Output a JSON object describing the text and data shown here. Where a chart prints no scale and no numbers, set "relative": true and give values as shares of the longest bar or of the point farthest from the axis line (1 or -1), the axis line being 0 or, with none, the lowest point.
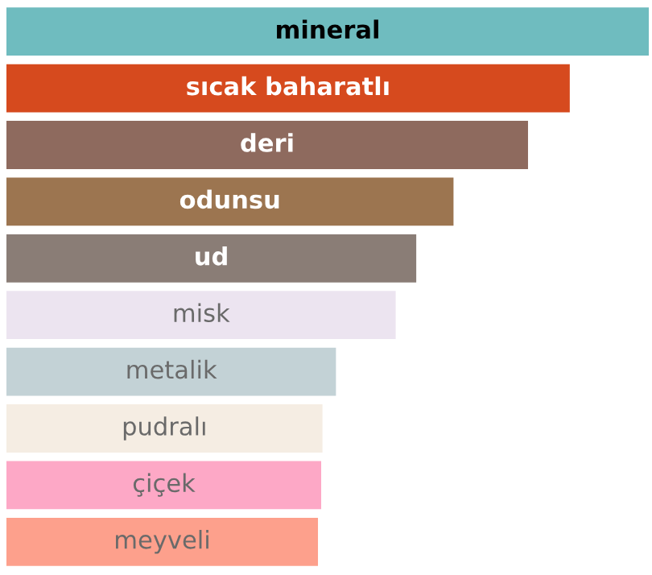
{
  "chart_data": {
    "type": "bar",
    "orientation": "horizontal",
    "relative": true,
    "categories": [
      "mineral",
      "sıcak baharatlı",
      "deri",
      "odunsu",
      "ud",
      "misk",
      "metalik",
      "pudralı",
      "çiçek",
      "meyveli"
    ],
    "values": [
      1,
      0.877,
      0.812,
      0.696,
      0.638,
      0.606,
      0.513,
      0.492,
      0.49,
      0.485
    ],
    "colors": [
      "#6fbcbf",
      "#d64a1e",
      "#8e6a5e",
      "#9c7550",
      "#8a7d76",
      "#ece4f0",
      "#c3d2d6",
      "#f5ede3",
      "#fda8c6",
      "#fda08c"
    ]
  }
}
